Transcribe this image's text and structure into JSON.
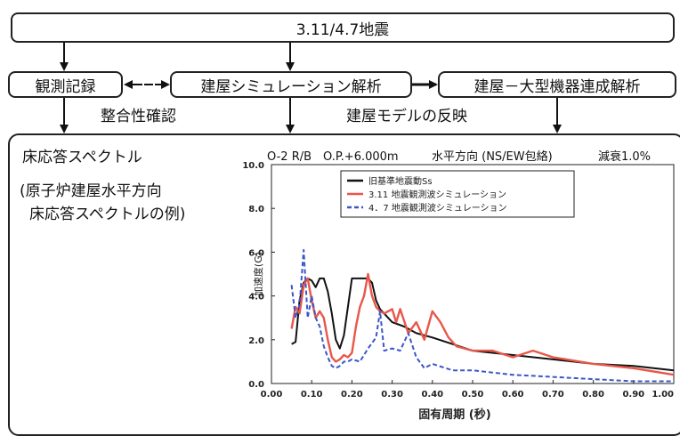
{
  "flow": {
    "earthquake_title": "3.11/4.7地震",
    "observation_record": "観測記録",
    "building_simulation": "建屋シミュレーション解析",
    "coupled_analysis": "建屋－大型機器連成解析",
    "consistency_check": "整合性確認",
    "model_reflection": "建屋モデルの反映",
    "double_arrow": "←-→"
  },
  "panel": {
    "heading": "床応答スペクトル",
    "note_line1": "(原子炉建屋水平方向",
    "note_line2": "床応答スペクトルの例)",
    "condition_location": "O-2 R/B　O.P.+6.000m",
    "condition_direction": "水平方向 (NS/EW包絡)",
    "condition_damping": "減衰1.0%"
  },
  "colors": {
    "ss": "#111111",
    "sim311": "#e8574a",
    "sim47": "#3b56c9"
  },
  "chart_data": {
    "type": "line",
    "xlabel": "固有周期 (秒)",
    "ylabel": "加速度(G)",
    "xlim": [
      0.0,
      1.0
    ],
    "ylim": [
      0.0,
      10.0
    ],
    "x_ticks": [
      "0.00",
      "0.10",
      "0.20",
      "0.30",
      "0.40",
      "0.50",
      "0.60",
      "0.70",
      "0.80",
      "0.90",
      "1.00"
    ],
    "y_ticks": [
      "0.0",
      "2.0",
      "4.0",
      "6.0",
      "8.0",
      "10.0"
    ],
    "grid": false,
    "legend_position": "top",
    "series": [
      {
        "name": "旧基準地震動Ss",
        "color": "#111111",
        "style": "solid",
        "x": [
          0.05,
          0.06,
          0.07,
          0.08,
          0.09,
          0.1,
          0.11,
          0.12,
          0.13,
          0.14,
          0.15,
          0.16,
          0.17,
          0.18,
          0.19,
          0.2,
          0.22,
          0.24,
          0.25,
          0.26,
          0.27,
          0.28,
          0.3,
          0.33,
          0.36,
          0.4,
          0.45,
          0.5,
          0.6,
          0.7,
          0.8,
          0.9,
          1.0
        ],
        "y": [
          1.8,
          1.9,
          3.8,
          4.6,
          4.8,
          4.7,
          4.4,
          4.8,
          4.8,
          4.2,
          3.2,
          2.0,
          1.6,
          2.2,
          3.5,
          4.8,
          4.8,
          4.8,
          4.6,
          3.8,
          3.4,
          3.2,
          2.8,
          2.6,
          2.3,
          2.1,
          1.8,
          1.5,
          1.3,
          1.1,
          0.9,
          0.8,
          0.6
        ]
      },
      {
        "name": "3.11 地震観測波シミュレーション",
        "color": "#e8574a",
        "style": "solid",
        "x": [
          0.05,
          0.06,
          0.07,
          0.08,
          0.09,
          0.1,
          0.11,
          0.12,
          0.13,
          0.14,
          0.15,
          0.16,
          0.17,
          0.18,
          0.19,
          0.2,
          0.21,
          0.22,
          0.23,
          0.24,
          0.25,
          0.26,
          0.27,
          0.28,
          0.3,
          0.31,
          0.32,
          0.34,
          0.36,
          0.38,
          0.4,
          0.42,
          0.44,
          0.46,
          0.5,
          0.55,
          0.6,
          0.65,
          0.7,
          0.8,
          0.9,
          1.0
        ],
        "y": [
          2.5,
          3.5,
          3.2,
          4.5,
          4.8,
          3.8,
          3.0,
          3.3,
          3.0,
          2.0,
          1.2,
          1.0,
          1.1,
          1.3,
          1.2,
          1.4,
          2.6,
          3.5,
          4.0,
          5.0,
          4.0,
          3.5,
          3.3,
          3.2,
          3.4,
          2.8,
          3.4,
          2.3,
          2.8,
          2.0,
          3.3,
          2.8,
          2.1,
          1.7,
          1.5,
          1.5,
          1.2,
          1.5,
          1.2,
          0.9,
          0.7,
          0.4
        ]
      },
      {
        "name": "4．7 地震観測波シミュレーション",
        "color": "#3b56c9",
        "style": "dashed",
        "x": [
          0.05,
          0.06,
          0.07,
          0.08,
          0.09,
          0.1,
          0.11,
          0.12,
          0.13,
          0.14,
          0.15,
          0.16,
          0.17,
          0.18,
          0.19,
          0.2,
          0.22,
          0.24,
          0.26,
          0.27,
          0.28,
          0.3,
          0.32,
          0.34,
          0.36,
          0.38,
          0.4,
          0.45,
          0.5,
          0.55,
          0.6,
          0.7,
          0.8,
          0.9,
          1.0
        ],
        "y": [
          4.5,
          3.0,
          3.6,
          6.1,
          3.0,
          4.0,
          3.0,
          2.6,
          1.7,
          1.2,
          0.8,
          0.7,
          0.8,
          1.0,
          1.0,
          1.1,
          1.0,
          1.6,
          2.1,
          3.3,
          1.5,
          1.6,
          1.5,
          2.3,
          1.2,
          0.7,
          0.9,
          0.6,
          0.6,
          0.5,
          0.4,
          0.3,
          0.2,
          0.1,
          0.1
        ]
      }
    ]
  }
}
